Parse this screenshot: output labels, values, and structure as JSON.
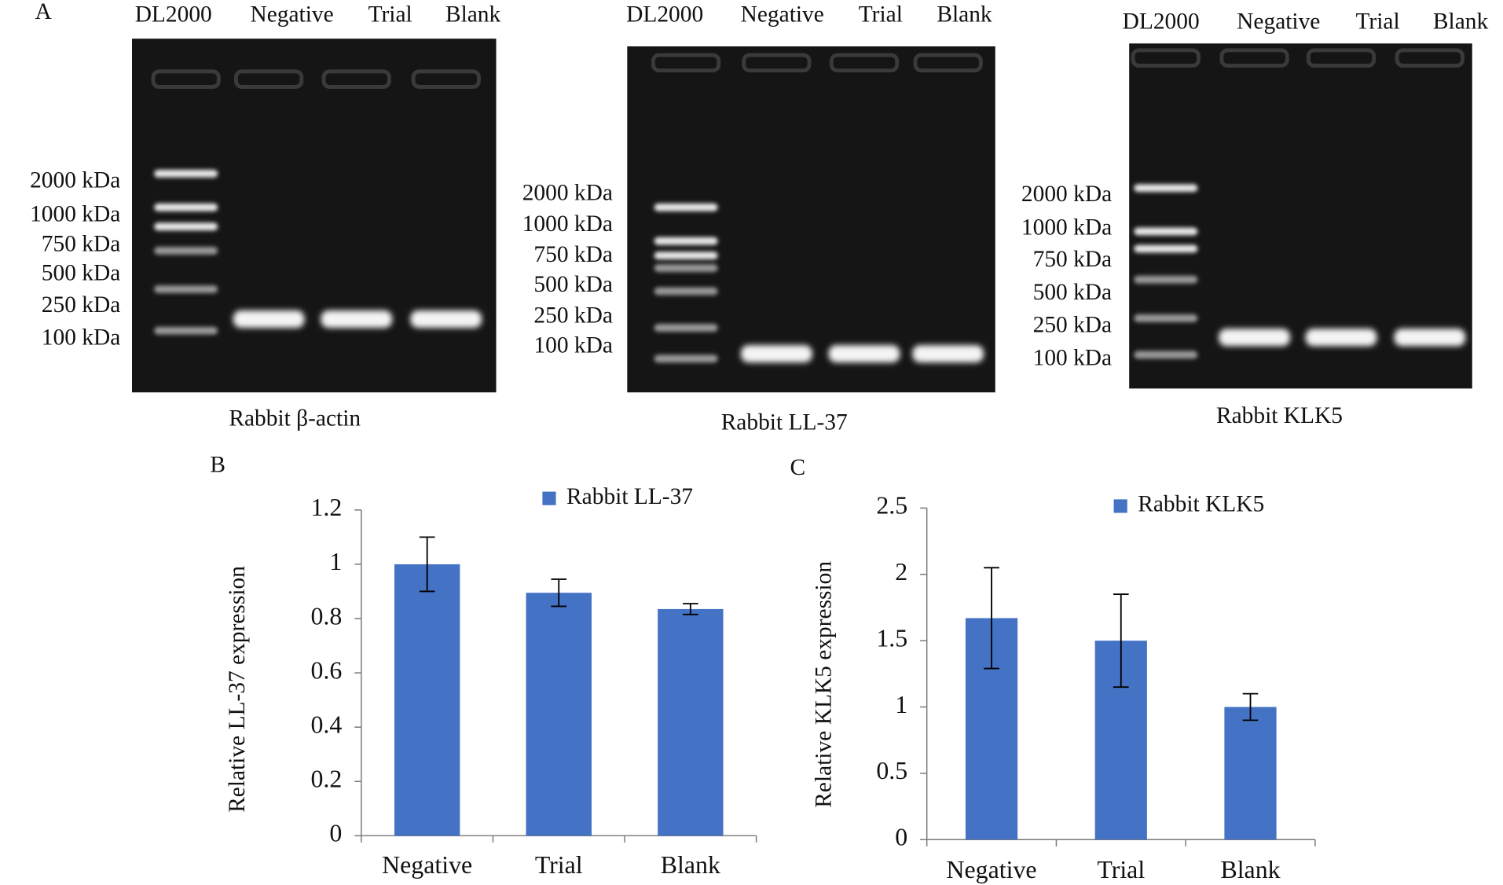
{
  "panel_label": "A",
  "gels": [
    {
      "lanes": [
        "DL2000",
        "Negative",
        "Trial",
        "Blank"
      ],
      "markers": [
        "2000 kDa",
        "1000 kDa",
        "750 kDa",
        "500 kDa",
        "250 kDa",
        "100 kDa"
      ],
      "caption": "Rabbit β-actin"
    },
    {
      "lanes": [
        "DL2000",
        "Negative",
        "Trial",
        "Blank"
      ],
      "markers": [
        "2000 kDa",
        "1000 kDa",
        "750 kDa",
        "500 kDa",
        "250 kDa",
        "100 kDa"
      ],
      "caption": "Rabbit LL-37"
    },
    {
      "lanes": [
        "DL2000",
        "Negative",
        "Trial",
        "Blank"
      ],
      "markers": [
        "2000 kDa",
        "1000 kDa",
        "750 kDa",
        "500 kDa",
        "250 kDa",
        "100 kDa"
      ],
      "caption": "Rabbit KLK5"
    }
  ],
  "chart_data": [
    {
      "type": "bar",
      "panel_label": "B",
      "y_label": "Relative  LL-37 expression",
      "categories": [
        "Negative",
        "Trial",
        "Blank"
      ],
      "series": [
        {
          "name": "Rabbit LL-37",
          "color": "#4472c4",
          "values": [
            1.0,
            0.895,
            0.835
          ],
          "errors": [
            0.1,
            0.05,
            0.02
          ]
        }
      ],
      "ylim": [
        0,
        1.2
      ],
      "yticks": [
        0,
        0.2,
        0.4,
        0.6,
        0.8,
        1,
        1.2
      ]
    },
    {
      "type": "bar",
      "panel_label": "C",
      "y_label": "Relative  KLK5 expression",
      "categories": [
        "Negative",
        "Trial",
        "Blank"
      ],
      "series": [
        {
          "name": "Rabbit  KLK5",
          "color": "#4472c4",
          "values": [
            1.67,
            1.5,
            1.0
          ],
          "errors": [
            0.38,
            0.35,
            0.1
          ]
        }
      ],
      "ylim": [
        0,
        2.5
      ],
      "yticks": [
        0,
        0.5,
        1,
        1.5,
        2,
        2.5
      ]
    }
  ]
}
